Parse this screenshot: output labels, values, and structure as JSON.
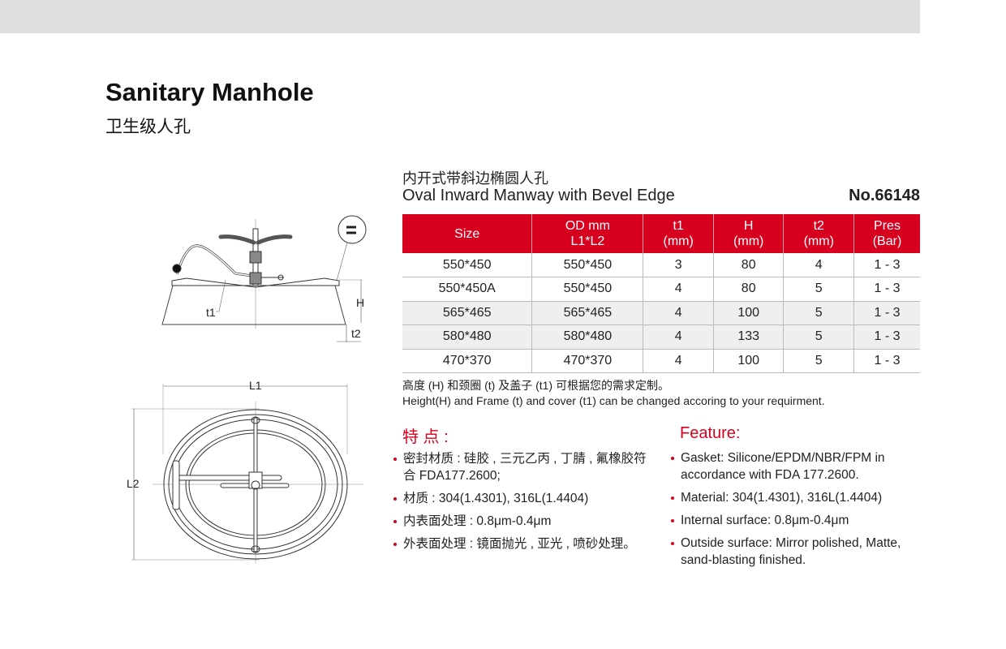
{
  "title": "Sanitary Manhole",
  "subtitle": "卫生级人孔",
  "product": {
    "title_cn": "内开式带斜边椭圆人孔",
    "title_en": "Oval Inward Manway with Bevel Edge",
    "number": "No.66148"
  },
  "table": {
    "headers": [
      [
        "Size",
        ""
      ],
      [
        "OD mm",
        "L1*L2"
      ],
      [
        "t1",
        "(mm)"
      ],
      [
        "H",
        "(mm)"
      ],
      [
        "t2",
        "(mm)"
      ],
      [
        "Pres",
        "(Bar)"
      ]
    ],
    "rows": [
      [
        "550*450",
        "550*450",
        "3",
        "80",
        "4",
        "1 - 3"
      ],
      [
        "550*450A",
        "550*450",
        "4",
        "80",
        "5",
        "1 - 3"
      ],
      [
        "565*465",
        "565*465",
        "4",
        "100",
        "5",
        "1 - 3"
      ],
      [
        "580*480",
        "580*480",
        "4",
        "133",
        "5",
        "1 - 3"
      ],
      [
        "470*370",
        "470*370",
        "4",
        "100",
        "5",
        "1 - 3"
      ]
    ]
  },
  "notes": {
    "cn": "高度 (H) 和颈圈 (t) 及盖子 (t1) 可根据您的需求定制。",
    "en": "Height(H) and Frame (t) and cover (t1) can be changed accoring to your requirment."
  },
  "features_cn": {
    "heading": "特 点 :",
    "items": [
      "密封材质 : 硅胶 , 三元乙丙 , 丁腈 , 氟橡胶符合 FDA177.2600;",
      "材质 : 304(1.4301), 316L(1.4404)",
      "内表面处理 : 0.8μm-0.4μm",
      "外表面处理 : 镜面抛光 , 亚光 , 喷砂处理。"
    ]
  },
  "features_en": {
    "heading": "Feature:",
    "items": [
      "Gasket: Silicone/EPDM/NBR/FPM in accordance with FDA 177.2600.",
      "Material: 304(1.4301), 316L(1.4404)",
      "Internal surface: 0.8μm-0.4μm",
      "Outside surface: Mirror polished, Matte, sand-blasting finished."
    ]
  },
  "drawing": {
    "labels": {
      "t1": "t1",
      "H": "H",
      "t2": "t2",
      "L1": "L1",
      "L2": "L2"
    }
  },
  "colors": {
    "accent": "#d7001e",
    "topbar": "#dedede",
    "row_shade": "#efefef"
  }
}
